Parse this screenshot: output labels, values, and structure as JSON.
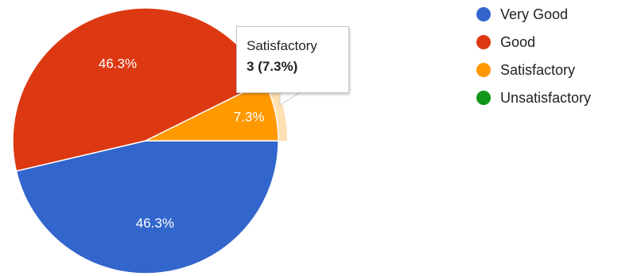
{
  "chart_data": {
    "type": "pie",
    "categories": [
      "Very Good",
      "Good",
      "Satisfactory",
      "Unsatisfactory"
    ],
    "values": [
      19,
      19,
      3,
      0
    ],
    "percent_labels": [
      "46.3%",
      "46.3%",
      "7.3%",
      ""
    ],
    "colors": [
      "#3366cc",
      "#dc3912",
      "#ff9900",
      "#109618"
    ],
    "legend_position": "right",
    "highlighted_slice": 2,
    "tooltip": {
      "title": "Satisfactory",
      "value": "3 (7.3%)"
    }
  }
}
